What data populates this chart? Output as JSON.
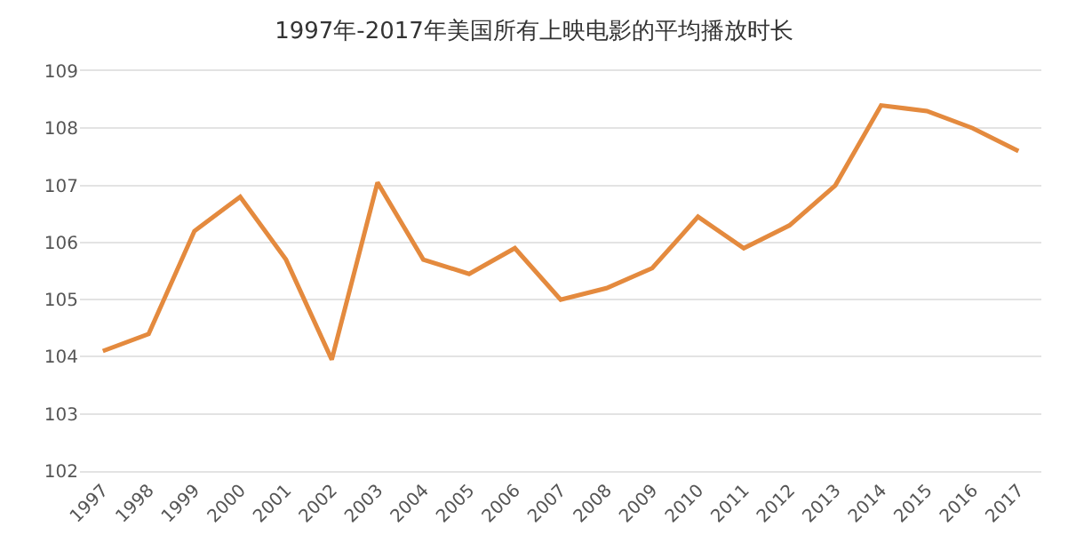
{
  "chart_data": {
    "type": "line",
    "title": "1997年-2017年美国所有上映电影的平均播放时长",
    "categories": [
      "1997",
      "1998",
      "1999",
      "2000",
      "2001",
      "2002",
      "2003",
      "2004",
      "2005",
      "2006",
      "2007",
      "2008",
      "2009",
      "2010",
      "2011",
      "2012",
      "2013",
      "2014",
      "2015",
      "2016",
      "2017"
    ],
    "series": [
      {
        "color": "#e48a3e",
        "values": [
          104.1,
          104.4,
          106.2,
          106.8,
          105.7,
          103.95,
          107.05,
          105.7,
          105.45,
          105.9,
          105.0,
          105.2,
          105.55,
          106.45,
          105.9,
          106.3,
          107.0,
          108.4,
          108.3,
          108.0,
          107.6
        ]
      }
    ],
    "ylim": [
      102,
      109
    ],
    "yticks": [
      102,
      103,
      104,
      105,
      106,
      107,
      108,
      109
    ],
    "grid": "y",
    "marker": "none",
    "line_style": "solid"
  }
}
